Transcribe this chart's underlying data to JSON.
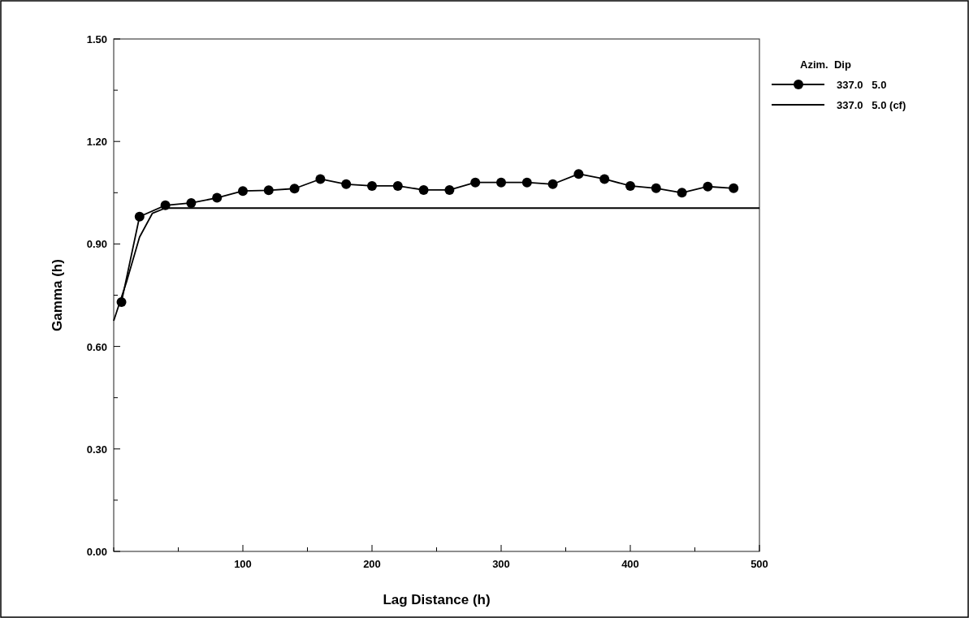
{
  "chart_data": {
    "type": "line",
    "xlabel": "Lag Distance (h)",
    "ylabel": "Gamma (h)",
    "legend_title": "Azim.  Dip",
    "legend": "top right",
    "grid": false,
    "xlim": [
      0,
      500
    ],
    "xticks": [
      {
        "value": 0,
        "label": null
      },
      {
        "value": 50,
        "label": null
      },
      100,
      {
        "value": 150,
        "label": null
      },
      200,
      {
        "value": 250,
        "label": null
      },
      300,
      {
        "value": 350,
        "label": null
      },
      400,
      {
        "value": 450,
        "label": null
      },
      500
    ],
    "ylim": [
      0,
      1.5
    ],
    "yticks": [
      {
        "value": 0,
        "label": "0.00"
      },
      {
        "value": 0.15,
        "label": null
      },
      {
        "value": 0.3,
        "label": "0.30"
      },
      {
        "value": 0.45,
        "label": null
      },
      {
        "value": 0.6,
        "label": "0.60"
      },
      {
        "value": 0.75,
        "label": null
      },
      {
        "value": 0.9,
        "label": "0.90"
      },
      {
        "value": 1.05,
        "label": null
      },
      {
        "value": 1.2,
        "label": "1.20"
      },
      {
        "value": 1.35,
        "label": null
      },
      {
        "value": 1.5,
        "label": "1.50"
      }
    ],
    "series": [
      {
        "name": "337.0   5.0",
        "color": "#000000",
        "marker": "circle",
        "x": [
          6,
          20,
          40,
          60,
          80,
          100,
          120,
          140,
          160,
          180,
          200,
          220,
          240,
          260,
          280,
          300,
          320,
          340,
          360,
          380,
          400,
          420,
          440,
          460,
          480
        ],
        "values": [
          0.73,
          0.98,
          1.013,
          1.02,
          1.035,
          1.055,
          1.057,
          1.062,
          1.09,
          1.075,
          1.07,
          1.07,
          1.058,
          1.058,
          1.08,
          1.08,
          1.08,
          1.075,
          1.105,
          1.09,
          1.07,
          1.063,
          1.05,
          1.068,
          1.063
        ]
      },
      {
        "name": "337.0   5.0 (cf)",
        "color": "#000000",
        "marker": "none",
        "x": [
          0,
          10,
          20,
          30,
          40,
          500
        ],
        "values": [
          0.675,
          0.79,
          0.92,
          0.99,
          1.005,
          1.005
        ]
      }
    ]
  }
}
